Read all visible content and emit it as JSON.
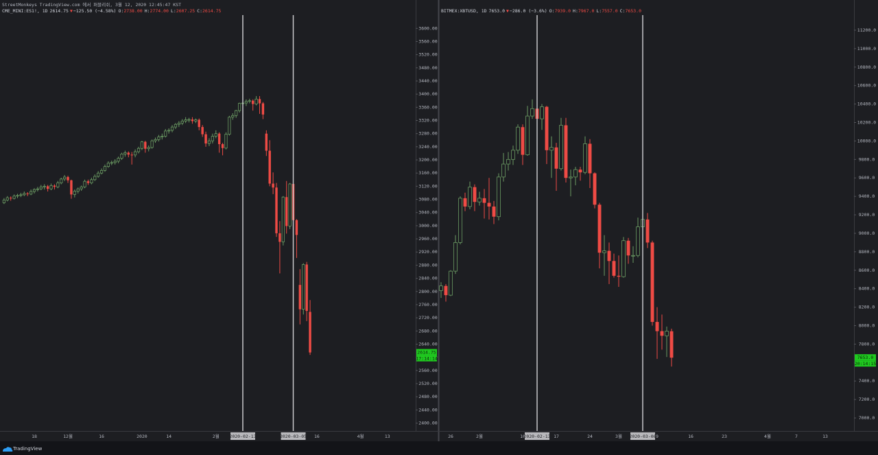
{
  "header": {
    "title": "StreetMonkeys TradingView.com 에서 퍼블리쉬, 3월 12, 2020 12:45:47 KST",
    "brand": "TradingView"
  },
  "chart_data": [
    {
      "type": "candlestick",
      "legend": {
        "symbol": "CME_MINI:ES1!, 1D",
        "last": "2614.75",
        "change_arrow": "▼",
        "change": "−125.50 (−4.58%)",
        "ohlc": [
          {
            "label": "O:",
            "value": "2738.00"
          },
          {
            "label": "H:",
            "value": "2774.00"
          },
          {
            "label": "L:",
            "value": "2607.25"
          },
          {
            "label": "C:",
            "value": "2614.75"
          }
        ]
      },
      "up_color": "#6b9b63",
      "down_color": "#ef4b45",
      "price_label": "2614.75",
      "countdown": "17:14:14",
      "xlim": [
        -1.2,
        122.4
      ],
      "ylim": [
        2376,
        3634
      ],
      "yticks": [
        {
          "value": 2400,
          "label": "2400.00"
        },
        {
          "value": 2440,
          "label": "2440.00"
        },
        {
          "value": 2480,
          "label": "2480.00"
        },
        {
          "value": 2520,
          "label": "2520.00"
        },
        {
          "value": 2560,
          "label": "2560.00"
        },
        {
          "value": 2600,
          "label": "2600.00"
        },
        {
          "value": 2640,
          "label": "2640.00"
        },
        {
          "value": 2680,
          "label": "2680.00"
        },
        {
          "value": 2720,
          "label": "2720.00"
        },
        {
          "value": 2760,
          "label": "2760.00"
        },
        {
          "value": 2800,
          "label": "2800.00"
        },
        {
          "value": 2840,
          "label": "2840.00"
        },
        {
          "value": 2880,
          "label": "2880.00"
        },
        {
          "value": 2920,
          "label": "2920.00"
        },
        {
          "value": 2960,
          "label": "2960.00"
        },
        {
          "value": 3000,
          "label": "3000.00"
        },
        {
          "value": 3040,
          "label": "3040.00"
        },
        {
          "value": 3080,
          "label": "3080.00"
        },
        {
          "value": 3120,
          "label": "3120.00"
        },
        {
          "value": 3160,
          "label": "3160.00"
        },
        {
          "value": 3200,
          "label": "3200.00"
        },
        {
          "value": 3240,
          "label": "3240.00"
        },
        {
          "value": 3280,
          "label": "3280.00"
        },
        {
          "value": 3320,
          "label": "3320.00"
        },
        {
          "value": 3360,
          "label": "3360.00"
        },
        {
          "value": 3400,
          "label": "3400.00"
        },
        {
          "value": 3440,
          "label": "3440.00"
        },
        {
          "value": 3480,
          "label": "3480.00"
        },
        {
          "value": 3520,
          "label": "3520.00"
        },
        {
          "value": 3560,
          "label": "3560.00"
        },
        {
          "value": 3600,
          "label": "3600.00"
        }
      ],
      "xticks": [
        {
          "value": 9,
          "label": "18"
        },
        {
          "value": 19,
          "label": "12월"
        },
        {
          "value": 29,
          "label": "16"
        },
        {
          "value": 41,
          "label": "2020"
        },
        {
          "value": 49,
          "label": "14"
        },
        {
          "value": 63,
          "label": "2월"
        },
        {
          "value": 93,
          "label": "16"
        },
        {
          "value": 106,
          "label": "4월"
        },
        {
          "value": 114,
          "label": "13"
        }
      ],
      "crosshairs": [
        {
          "value": 71,
          "label": "2020-02-13"
        },
        {
          "value": 86,
          "label": "2020-03-05"
        }
      ],
      "ohlc": [
        [
          3070,
          3084,
          3066,
          3078
        ],
        [
          3078,
          3090,
          3074,
          3085
        ],
        [
          3085,
          3089,
          3076,
          3083
        ],
        [
          3083,
          3095,
          3080,
          3090
        ],
        [
          3090,
          3097,
          3084,
          3092
        ],
        [
          3092,
          3100,
          3087,
          3094
        ],
        [
          3094,
          3104,
          3090,
          3098
        ],
        [
          3098,
          3102,
          3090,
          3096
        ],
        [
          3096,
          3110,
          3093,
          3104
        ],
        [
          3104,
          3114,
          3098,
          3110
        ],
        [
          3110,
          3118,
          3104,
          3112
        ],
        [
          3112,
          3124,
          3108,
          3118
        ],
        [
          3118,
          3126,
          3110,
          3120
        ],
        [
          3120,
          3124,
          3104,
          3112
        ],
        [
          3112,
          3128,
          3108,
          3122
        ],
        [
          3122,
          3126,
          3110,
          3118
        ],
        [
          3118,
          3136,
          3114,
          3130
        ],
        [
          3130,
          3146,
          3126,
          3142
        ],
        [
          3142,
          3154,
          3136,
          3148
        ],
        [
          3148,
          3152,
          3130,
          3138
        ],
        [
          3138,
          3140,
          3082,
          3095
        ],
        [
          3095,
          3110,
          3086,
          3105
        ],
        [
          3105,
          3116,
          3098,
          3112
        ],
        [
          3112,
          3122,
          3106,
          3118
        ],
        [
          3118,
          3140,
          3114,
          3135
        ],
        [
          3135,
          3140,
          3124,
          3130
        ],
        [
          3130,
          3146,
          3126,
          3140
        ],
        [
          3140,
          3156,
          3136,
          3150
        ],
        [
          3150,
          3166,
          3146,
          3160
        ],
        [
          3160,
          3174,
          3156,
          3168
        ],
        [
          3168,
          3186,
          3164,
          3180
        ],
        [
          3180,
          3196,
          3176,
          3190
        ],
        [
          3190,
          3198,
          3184,
          3192
        ],
        [
          3192,
          3202,
          3186,
          3196
        ],
        [
          3196,
          3210,
          3190,
          3205
        ],
        [
          3205,
          3222,
          3200,
          3218
        ],
        [
          3218,
          3228,
          3210,
          3222
        ],
        [
          3222,
          3226,
          3208,
          3216
        ],
        [
          3216,
          3224,
          3186,
          3215
        ],
        [
          3215,
          3232,
          3208,
          3225
        ],
        [
          3225,
          3240,
          3220,
          3235
        ],
        [
          3235,
          3258,
          3230,
          3255
        ],
        [
          3255,
          3258,
          3222,
          3234
        ],
        [
          3234,
          3244,
          3226,
          3238
        ],
        [
          3238,
          3262,
          3234,
          3258
        ],
        [
          3258,
          3268,
          3252,
          3262
        ],
        [
          3262,
          3276,
          3256,
          3270
        ],
        [
          3270,
          3280,
          3262,
          3272
        ],
        [
          3272,
          3294,
          3268,
          3288
        ],
        [
          3288,
          3296,
          3280,
          3290
        ],
        [
          3290,
          3306,
          3284,
          3300
        ],
        [
          3300,
          3312,
          3294,
          3308
        ],
        [
          3308,
          3318,
          3300,
          3312
        ],
        [
          3312,
          3324,
          3306,
          3318
        ],
        [
          3318,
          3330,
          3312,
          3322
        ],
        [
          3322,
          3328,
          3314,
          3323
        ],
        [
          3323,
          3330,
          3310,
          3318
        ],
        [
          3318,
          3326,
          3312,
          3322
        ],
        [
          3322,
          3326,
          3290,
          3300
        ],
        [
          3300,
          3306,
          3270,
          3278
        ],
        [
          3278,
          3286,
          3240,
          3250
        ],
        [
          3250,
          3266,
          3242,
          3258
        ],
        [
          3258,
          3280,
          3250,
          3272
        ],
        [
          3272,
          3290,
          3266,
          3280
        ],
        [
          3280,
          3284,
          3222,
          3248
        ],
        [
          3248,
          3252,
          3214,
          3236
        ],
        [
          3236,
          3284,
          3232,
          3278
        ],
        [
          3278,
          3334,
          3274,
          3330
        ],
        [
          3330,
          3342,
          3322,
          3335
        ],
        [
          3335,
          3352,
          3328,
          3350
        ],
        [
          3350,
          3374,
          3344,
          3372
        ],
        [
          3372,
          3380,
          3358,
          3373
        ],
        [
          3373,
          3384,
          3364,
          3378
        ],
        [
          3378,
          3386,
          3372,
          3380
        ],
        [
          3380,
          3384,
          3350,
          3370
        ],
        [
          3370,
          3394,
          3366,
          3385
        ],
        [
          3385,
          3394,
          3340,
          3372
        ],
        [
          3372,
          3376,
          3324,
          3338
        ],
        [
          3280,
          3290,
          3212,
          3228
        ],
        [
          3228,
          3260,
          3120,
          3128
        ],
        [
          3128,
          3162,
          3096,
          3116
        ],
        [
          3116,
          3130,
          2966,
          2977
        ],
        [
          2977,
          3014,
          2855,
          2951
        ],
        [
          2951,
          3090,
          2940,
          3087
        ],
        [
          3087,
          3136,
          2976,
          2999
        ],
        [
          2999,
          3130,
          2990,
          3127
        ],
        [
          3127,
          3132,
          3000,
          3017
        ],
        [
          3017,
          3020,
          2902,
          2972
        ],
        [
          2820,
          2868,
          2700,
          2746
        ],
        [
          2746,
          2886,
          2730,
          2882
        ],
        [
          2882,
          2890,
          2710,
          2741
        ],
        [
          2738,
          2774,
          2607.25,
          2614.75
        ]
      ]
    },
    {
      "type": "candlestick",
      "legend": {
        "symbol": "BITMEX:XBTUSD, 1D",
        "last": "7653.0",
        "change_arrow": "▼",
        "change": "−286.0 (−3.6%)",
        "ohlc": [
          {
            "label": "O:",
            "value": "7939.0"
          },
          {
            "label": "H:",
            "value": "7967.0"
          },
          {
            "label": "L:",
            "value": "7557.0"
          },
          {
            "label": "C:",
            "value": "7653.0"
          }
        ]
      },
      "up_color": "#6b9b63",
      "down_color": "#ef4b45",
      "price_label": "7653.0",
      "countdown": "20:14:15",
      "xlim": [
        -0.43,
        86
      ],
      "ylim": [
        6859,
        11341
      ],
      "yticks": [
        {
          "value": 7000,
          "label": "7000.0"
        },
        {
          "value": 7200,
          "label": "7200.0"
        },
        {
          "value": 7400,
          "label": "7400.0"
        },
        {
          "value": 7600,
          "label": "7600.0"
        },
        {
          "value": 7800,
          "label": "7800.0"
        },
        {
          "value": 8000,
          "label": "8000.0"
        },
        {
          "value": 8200,
          "label": "8200.0"
        },
        {
          "value": 8400,
          "label": "8400.0"
        },
        {
          "value": 8600,
          "label": "8600.0"
        },
        {
          "value": 8800,
          "label": "8800.0"
        },
        {
          "value": 9000,
          "label": "9000.0"
        },
        {
          "value": 9200,
          "label": "9200.0"
        },
        {
          "value": 9400,
          "label": "9400.0"
        },
        {
          "value": 9600,
          "label": "9600.0"
        },
        {
          "value": 9800,
          "label": "9800.0"
        },
        {
          "value": 10000,
          "label": "10000.0"
        },
        {
          "value": 10200,
          "label": "10200.0"
        },
        {
          "value": 10400,
          "label": "10400.0"
        },
        {
          "value": 10600,
          "label": "10600.0"
        },
        {
          "value": 10800,
          "label": "10800.0"
        },
        {
          "value": 11000,
          "label": "11000.0"
        },
        {
          "value": 11200,
          "label": "11200.0"
        }
      ],
      "xticks": [
        {
          "value": 2,
          "label": "26"
        },
        {
          "value": 8,
          "label": "2월"
        },
        {
          "value": 17,
          "label": "10"
        },
        {
          "value": 24,
          "label": "17"
        },
        {
          "value": 31,
          "label": "24"
        },
        {
          "value": 37,
          "label": "3월"
        },
        {
          "value": 45,
          "label": "9"
        },
        {
          "value": 52,
          "label": "16"
        },
        {
          "value": 59,
          "label": "23"
        },
        {
          "value": 68,
          "label": "4월"
        },
        {
          "value": 74,
          "label": "7"
        },
        {
          "value": 80,
          "label": "13"
        }
      ],
      "crosshairs": [
        {
          "value": 20,
          "label": "2020-02-13"
        },
        {
          "value": 42,
          "label": "2020-03-06"
        }
      ],
      "ohlc": [
        [
          8380,
          8470,
          8300,
          8430
        ],
        [
          8430,
          8450,
          8260,
          8330
        ],
        [
          8330,
          8600,
          8320,
          8590
        ],
        [
          8590,
          8980,
          8560,
          8900
        ],
        [
          8900,
          9400,
          8880,
          9380
        ],
        [
          9380,
          9440,
          9240,
          9290
        ],
        [
          9290,
          9560,
          9260,
          9500
        ],
        [
          9500,
          9530,
          9240,
          9340
        ],
        [
          9340,
          9450,
          9300,
          9380
        ],
        [
          9380,
          9480,
          9160,
          9330
        ],
        [
          9330,
          9600,
          9150,
          9290
        ],
        [
          9290,
          9350,
          9100,
          9180
        ],
        [
          9180,
          9650,
          9140,
          9610
        ],
        [
          9610,
          9870,
          9560,
          9750
        ],
        [
          9750,
          9880,
          9680,
          9800
        ],
        [
          9800,
          9950,
          9740,
          9900
        ],
        [
          9900,
          10180,
          9860,
          10150
        ],
        [
          10150,
          10180,
          9740,
          9850
        ],
        [
          9850,
          10380,
          9840,
          10270
        ],
        [
          10270,
          10450,
          10240,
          10350
        ],
        [
          10350,
          10500,
          10080,
          10240
        ],
        [
          10240,
          10400,
          10120,
          10370
        ],
        [
          10370,
          10380,
          9750,
          9900
        ],
        [
          9900,
          10050,
          9600,
          9930
        ],
        [
          9930,
          9980,
          9460,
          9700
        ],
        [
          9700,
          10250,
          9680,
          10170
        ],
        [
          10170,
          10250,
          9550,
          9600
        ],
        [
          9600,
          9690,
          9400,
          9610
        ],
        [
          9610,
          9720,
          9520,
          9690
        ],
        [
          9690,
          9720,
          9570,
          9660
        ],
        [
          9660,
          10050,
          9640,
          9970
        ],
        [
          9970,
          10020,
          9490,
          9650
        ],
        [
          9650,
          9660,
          9270,
          9310
        ],
        [
          9310,
          9330,
          8620,
          8790
        ],
        [
          8790,
          8980,
          8540,
          8810
        ],
        [
          8810,
          8900,
          8450,
          8700
        ],
        [
          8700,
          8780,
          8520,
          8540
        ],
        [
          8540,
          8760,
          8420,
          8530
        ],
        [
          8530,
          8960,
          8520,
          8920
        ],
        [
          8920,
          8950,
          8670,
          8760
        ],
        [
          8760,
          8860,
          8680,
          8760
        ],
        [
          8760,
          9170,
          8740,
          9070
        ],
        [
          9070,
          9190,
          9000,
          9150
        ],
        [
          9150,
          9220,
          8840,
          8900
        ],
        [
          8900,
          8920,
          8000,
          8040
        ],
        [
          8040,
          8200,
          7640,
          7940
        ],
        [
          7940,
          8120,
          7740,
          7890
        ],
        [
          7890,
          7990,
          7660,
          7940
        ],
        [
          7939,
          7967,
          7557,
          7653
        ]
      ]
    }
  ]
}
